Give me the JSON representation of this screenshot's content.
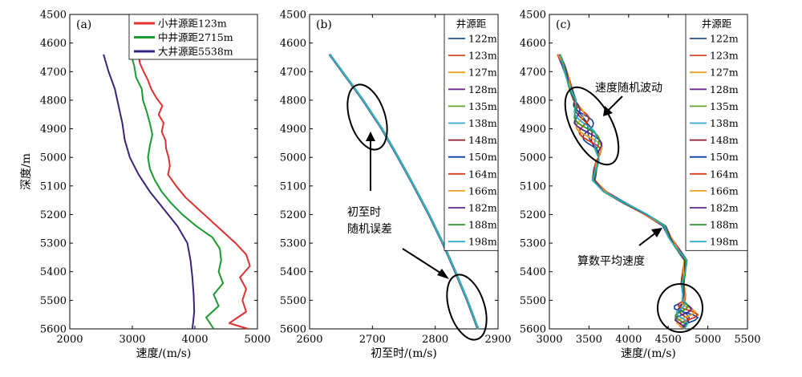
{
  "chart_data": [
    {
      "type": "line",
      "panel": "(a)",
      "xlabel": "速度/(m/s)",
      "ylabel": "深度/m",
      "xlim": [
        2000,
        5000
      ],
      "ylim": [
        4500,
        5600
      ],
      "y_inverted": true,
      "xticks": [
        "2000",
        "3000",
        "4000",
        "5000"
      ],
      "yticks": [
        "4500",
        "4600",
        "4700",
        "4800",
        "4900",
        "5000",
        "5100",
        "5200",
        "5300",
        "5400",
        "5500",
        "5600"
      ],
      "legend_position": "top-right",
      "series": [
        {
          "name": "小井源距123m",
          "color": "#e03030",
          "depth": [
            4640,
            4670,
            4700,
            4730,
            4760,
            4790,
            4820,
            4850,
            4880,
            4910,
            4940,
            4970,
            5000,
            5030,
            5060,
            5100,
            5140,
            5180,
            5220,
            5260,
            5300,
            5340,
            5380,
            5420,
            5460,
            5500,
            5540,
            5580,
            5600
          ],
          "velocity": [
            3100,
            3120,
            3180,
            3250,
            3300,
            3380,
            3480,
            3420,
            3500,
            3470,
            3530,
            3540,
            3580,
            3600,
            3570,
            3700,
            3850,
            4050,
            4250,
            4450,
            4650,
            4820,
            4880,
            4720,
            4820,
            4760,
            4820,
            4550,
            4850
          ]
        },
        {
          "name": "中井源距2715m",
          "color": "#1a9a30",
          "depth": [
            4640,
            4680,
            4720,
            4760,
            4800,
            4840,
            4880,
            4920,
            4960,
            5000,
            5040,
            5080,
            5120,
            5160,
            5200,
            5240,
            5280,
            5320,
            5360,
            5400,
            5440,
            5480,
            5520,
            5560,
            5600
          ],
          "velocity": [
            2980,
            3030,
            3060,
            3150,
            3170,
            3230,
            3280,
            3320,
            3280,
            3250,
            3280,
            3360,
            3470,
            3620,
            3800,
            4020,
            4280,
            4400,
            4420,
            4380,
            4450,
            4300,
            4380,
            4180,
            4300
          ]
        },
        {
          "name": "大井源距5538m",
          "color": "#3a237a",
          "depth": [
            4640,
            4700,
            4760,
            4820,
            4880,
            4940,
            5000,
            5060,
            5120,
            5180,
            5240,
            5300,
            5360,
            5420,
            5480,
            5540,
            5600
          ],
          "velocity": [
            2540,
            2620,
            2720,
            2780,
            2840,
            2880,
            2960,
            3100,
            3280,
            3500,
            3720,
            3880,
            3930,
            3960,
            3980,
            3990,
            3960
          ]
        }
      ]
    },
    {
      "type": "line",
      "panel": "(b)",
      "xlabel": "初至时/(m/s)",
      "ylabel": "",
      "xlim": [
        2600,
        2900
      ],
      "ylim": [
        4500,
        5600
      ],
      "y_inverted": true,
      "xticks": [
        "2600",
        "2700",
        "2800",
        "2900"
      ],
      "yticks": [
        "4500",
        "4600",
        "4700",
        "4800",
        "4900",
        "5000",
        "5100",
        "5200",
        "5300",
        "5400",
        "5500",
        "5600"
      ],
      "legend_title": "井源距",
      "legend_position": "top-right",
      "annotations": [
        "初至时",
        "随机误差"
      ],
      "series": [
        {
          "name": "122m",
          "color": "#1f4e9e"
        },
        {
          "name": "123m",
          "color": "#d94a2a"
        },
        {
          "name": "127m",
          "color": "#f0a020"
        },
        {
          "name": "128m",
          "color": "#6b2a8a"
        },
        {
          "name": "135m",
          "color": "#5fa030"
        },
        {
          "name": "138m",
          "color": "#3fa8d8"
        },
        {
          "name": "148m",
          "color": "#8a1a2a"
        },
        {
          "name": "150m",
          "color": "#0a3fa8"
        },
        {
          "name": "164m",
          "color": "#d83a1a"
        },
        {
          "name": "166m",
          "color": "#f0a020"
        },
        {
          "name": "182m",
          "color": "#5a2a8a"
        },
        {
          "name": "188m",
          "color": "#2a9a2a"
        },
        {
          "name": "198m",
          "color": "#2ab0c8"
        }
      ],
      "curve": {
        "depth": [
          4640,
          4700,
          4800,
          4900,
          5000,
          5100,
          5200,
          5300,
          5400,
          5500,
          5600
        ],
        "time": [
          2632,
          2652,
          2685,
          2715,
          2741,
          2766,
          2790,
          2812,
          2832,
          2851,
          2868
        ]
      }
    },
    {
      "type": "line",
      "panel": "(c)",
      "xlabel": "速度/(m/s)",
      "ylabel": "",
      "xlim": [
        3000,
        5500
      ],
      "ylim": [
        4500,
        5600
      ],
      "y_inverted": true,
      "xticks": [
        "3000",
        "3500",
        "4000",
        "4500",
        "5000",
        "5500"
      ],
      "yticks": [
        "4500",
        "4600",
        "4700",
        "4800",
        "4900",
        "5000",
        "5100",
        "5200",
        "5300",
        "5400",
        "5500",
        "5600"
      ],
      "legend_title": "井源距",
      "legend_position": "top-right",
      "annotations": [
        "速度随机波动",
        "算数平均速度"
      ],
      "series": [
        {
          "name": "122m",
          "color": "#1f4e9e"
        },
        {
          "name": "123m",
          "color": "#d94a2a"
        },
        {
          "name": "127m",
          "color": "#f0a020"
        },
        {
          "name": "128m",
          "color": "#6b2a8a"
        },
        {
          "name": "135m",
          "color": "#5fa030"
        },
        {
          "name": "138m",
          "color": "#3fa8d8"
        },
        {
          "name": "148m",
          "color": "#8a1a2a"
        },
        {
          "name": "150m",
          "color": "#0a3fa8"
        },
        {
          "name": "164m",
          "color": "#d83a1a"
        },
        {
          "name": "166m",
          "color": "#f0a020"
        },
        {
          "name": "182m",
          "color": "#5a2a8a"
        },
        {
          "name": "188m",
          "color": "#2a9a2a"
        },
        {
          "name": "198m",
          "color": "#2ab0c8"
        }
      ],
      "mean_curve": {
        "depth": [
          4640,
          4680,
          4720,
          4760,
          4800,
          4840,
          4880,
          4920,
          4960,
          5000,
          5040,
          5080,
          5120,
          5160,
          5200,
          5240,
          5280,
          5320,
          5360,
          5400,
          5440,
          5480,
          5520,
          5560,
          5600
        ],
        "velocity": [
          3120,
          3180,
          3230,
          3270,
          3320,
          3360,
          3420,
          3520,
          3600,
          3620,
          3580,
          3560,
          3700,
          3950,
          4220,
          4450,
          4520,
          4620,
          4720,
          4700,
          4680,
          4700,
          4690,
          4700,
          4700
        ]
      }
    }
  ]
}
